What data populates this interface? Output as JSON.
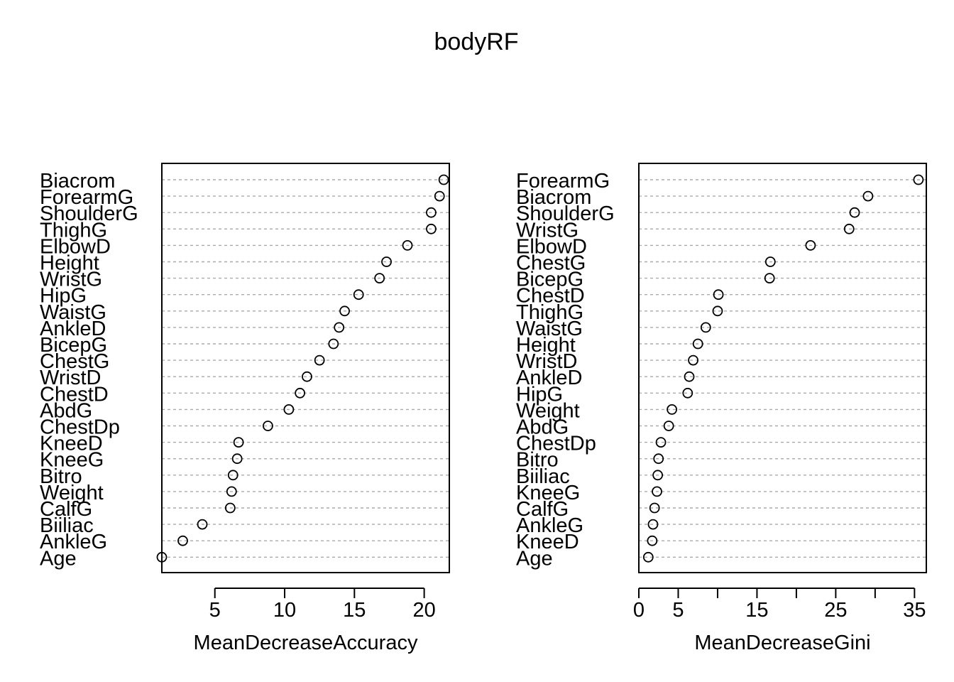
{
  "title": "bodyRF",
  "chart_data": [
    {
      "type": "scatter",
      "xlabel": "MeanDecreaseAccuracy",
      "xlim": [
        1.2,
        21.8
      ],
      "xticks": [
        5,
        10,
        15,
        20
      ],
      "grid": "dotted-horizontal",
      "categories": [
        "Biacrom",
        "ForearmG",
        "ShoulderG",
        "ThighG",
        "ElbowD",
        "Height",
        "WristG",
        "HipG",
        "WaistG",
        "AnkleD",
        "BicepG",
        "ChestG",
        "WristD",
        "ChestD",
        "AbdG",
        "ChestDp",
        "KneeD",
        "KneeG",
        "Bitro",
        "Weight",
        "CalfG",
        "Biiliac",
        "AnkleG",
        "Age"
      ],
      "values": [
        21.4,
        21.1,
        20.5,
        20.5,
        18.8,
        17.3,
        16.8,
        15.3,
        14.3,
        13.9,
        13.5,
        12.5,
        11.6,
        11.1,
        10.3,
        8.8,
        6.7,
        6.6,
        6.3,
        6.2,
        6.1,
        4.1,
        2.7,
        1.2
      ]
    },
    {
      "type": "scatter",
      "xlabel": "MeanDecreaseGini",
      "xlim": [
        0,
        36.5
      ],
      "xticks": [
        0,
        5,
        15,
        25,
        35
      ],
      "minor_ticks": [
        10,
        20,
        30
      ],
      "grid": "dotted-horizontal",
      "categories": [
        "ForearmG",
        "Biacrom",
        "ShoulderG",
        "WristG",
        "ElbowD",
        "ChestG",
        "BicepG",
        "ChestD",
        "ThighG",
        "WaistG",
        "Height",
        "WristD",
        "AnkleD",
        "HipG",
        "Weight",
        "AbdG",
        "ChestDp",
        "Bitro",
        "Biiliac",
        "KneeG",
        "CalfG",
        "AnkleG",
        "KneeD",
        "Age"
      ],
      "values": [
        35.5,
        29.1,
        27.4,
        26.7,
        21.8,
        16.7,
        16.6,
        10.1,
        10.0,
        8.5,
        7.5,
        6.9,
        6.4,
        6.2,
        4.2,
        3.8,
        2.8,
        2.5,
        2.4,
        2.3,
        2.0,
        1.8,
        1.7,
        1.2
      ]
    }
  ]
}
